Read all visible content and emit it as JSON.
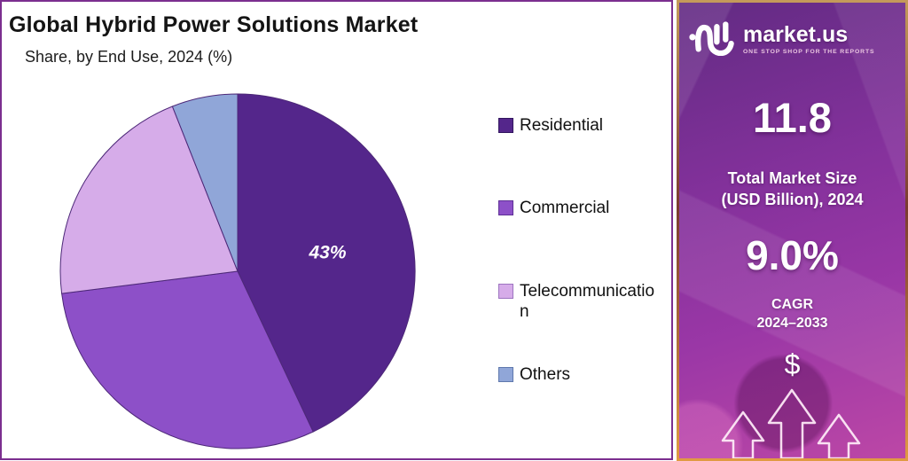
{
  "chart_data": {
    "type": "pie",
    "title": "Global Hybrid Power Solutions Market",
    "subtitle": "Share, by End Use, 2024 (%)",
    "categories": [
      "Residential",
      "Commercial",
      "Telecommunication",
      "Others"
    ],
    "values": [
      43,
      30,
      21,
      6
    ],
    "data_labels": [
      "43%",
      "",
      "",
      ""
    ],
    "colors": [
      "#54268b",
      "#8d50c8",
      "#d6ace9",
      "#90a6d8"
    ],
    "swatch_border_colors": [
      "#31155e",
      "#5e2f96",
      "#9d74c0",
      "#5f78ad"
    ],
    "start_angle_deg": 0,
    "direction": "clockwise",
    "legend_position": "right",
    "note": "Only the Residential slice shows a data label (43%); remaining slice values estimated from arc angles."
  },
  "sidebar": {
    "brand_name": "market.us",
    "brand_tagline": "ONE STOP SHOP FOR THE REPORTS",
    "market_size_value": "11.8",
    "market_size_label_line1": "Total Market Size",
    "market_size_label_line2": "(USD Billion), 2024",
    "cagr_value": "9.0%",
    "cagr_label_line1": "CAGR",
    "cagr_label_line2": "2024–2033",
    "dollar_symbol": "$"
  },
  "colors": {
    "panel_border": "#7b2e8f",
    "pie_stroke": "#4d2878",
    "text_dark": "#141414",
    "sidebar_gradient_top": "#622b83",
    "sidebar_gradient_mid": "#9a37a6",
    "sidebar_gradient_bottom": "#bc47a6",
    "sidebar_border_top": "#c49a5a",
    "sidebar_border_bottom": "#e09a43"
  },
  "icons": {
    "logo": "marketus-logo-icon",
    "arrows": "growth-arrows-icon",
    "dollar": "dollar-icon"
  }
}
